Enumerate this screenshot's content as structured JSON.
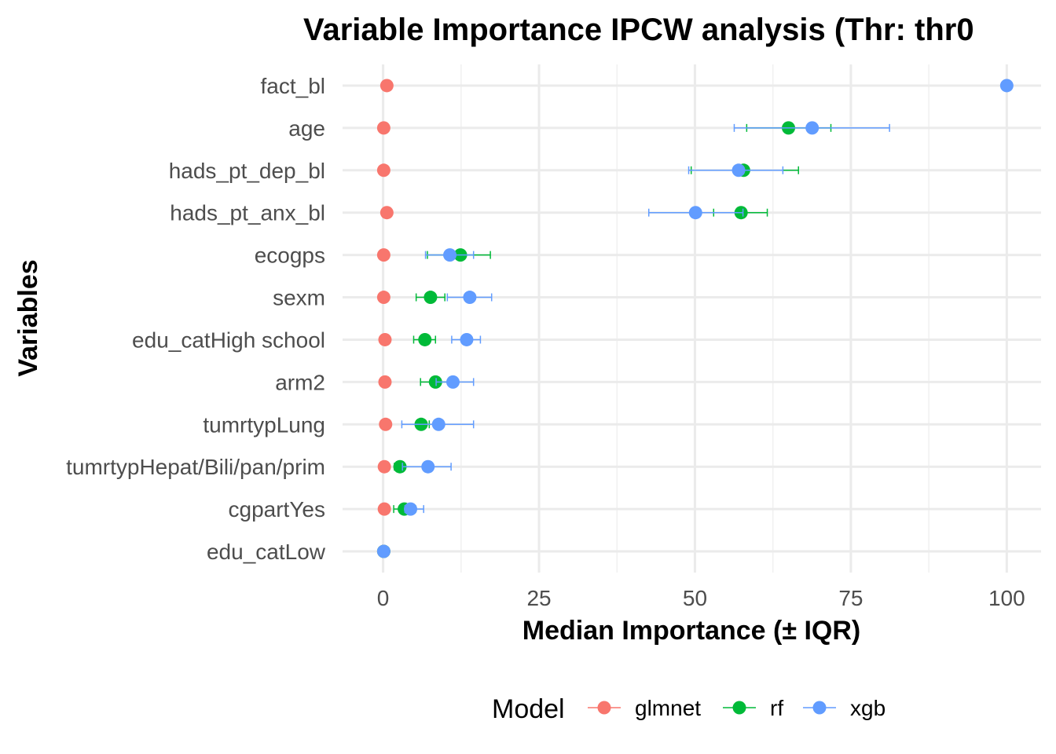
{
  "chart_data": {
    "type": "scatter",
    "title": "Variable Importance IPCW analysis (Thr: thr0",
    "xlabel": "Median Importance (± IQR)",
    "ylabel": "Variables",
    "xlim": [
      -6.5,
      105.5
    ],
    "x_ticks": [
      0,
      25,
      50,
      75,
      100
    ],
    "x_tick_labels": [
      "0",
      "25",
      "50",
      "75",
      "100"
    ],
    "categories": [
      "fact_bl",
      "age",
      "hads_pt_dep_bl",
      "hads_pt_anx_bl",
      "ecogps",
      "sexm",
      "edu_catHigh school",
      "arm2",
      "tumrtypLung",
      "tumrtypHepat/Bili/pan/prim",
      "cgpartYes",
      "edu_catLow"
    ],
    "grid": true,
    "legend": {
      "title": "Model",
      "position": "bottom",
      "entries": [
        "glmnet",
        "rf",
        "xgb"
      ]
    },
    "series": [
      {
        "name": "glmnet",
        "color": "#F8766D",
        "values": [
          0.6,
          0.1,
          0.1,
          0.6,
          0.1,
          0.1,
          0.3,
          0.3,
          0.4,
          0.2,
          0.2,
          0.1
        ],
        "lower": [
          0.6,
          0.1,
          0.1,
          0.6,
          0.1,
          0.1,
          0.3,
          0.3,
          0.4,
          0.2,
          0.2,
          0.1
        ],
        "upper": [
          0.6,
          0.1,
          0.1,
          0.6,
          0.1,
          0.1,
          0.3,
          0.3,
          0.4,
          0.2,
          0.2,
          0.1
        ]
      },
      {
        "name": "rf",
        "color": "#00BA38",
        "values": [
          null,
          65.0,
          57.8,
          57.4,
          12.4,
          7.6,
          6.7,
          8.4,
          6.1,
          2.7,
          3.4,
          0.1
        ],
        "lower": [
          null,
          58.3,
          49.4,
          53.0,
          7.1,
          5.3,
          4.9,
          6.0,
          5.4,
          1.8,
          1.7,
          0.0
        ],
        "upper": [
          null,
          71.8,
          66.6,
          61.6,
          17.2,
          9.9,
          8.4,
          10.9,
          7.4,
          3.4,
          5.2,
          0.2
        ]
      },
      {
        "name": "xgb",
        "color": "#619CFF",
        "values": [
          100.0,
          68.8,
          57.0,
          50.1,
          10.7,
          13.9,
          13.4,
          11.2,
          8.9,
          7.2,
          4.4,
          0.1
        ],
        "lower": [
          100.0,
          56.3,
          49.0,
          42.6,
          6.8,
          10.3,
          11.0,
          8.5,
          3.0,
          3.1,
          3.5,
          0.0
        ],
        "upper": [
          100.0,
          81.2,
          64.1,
          57.7,
          14.5,
          17.4,
          15.6,
          14.5,
          14.5,
          10.9,
          6.5,
          0.2
        ]
      }
    ]
  }
}
